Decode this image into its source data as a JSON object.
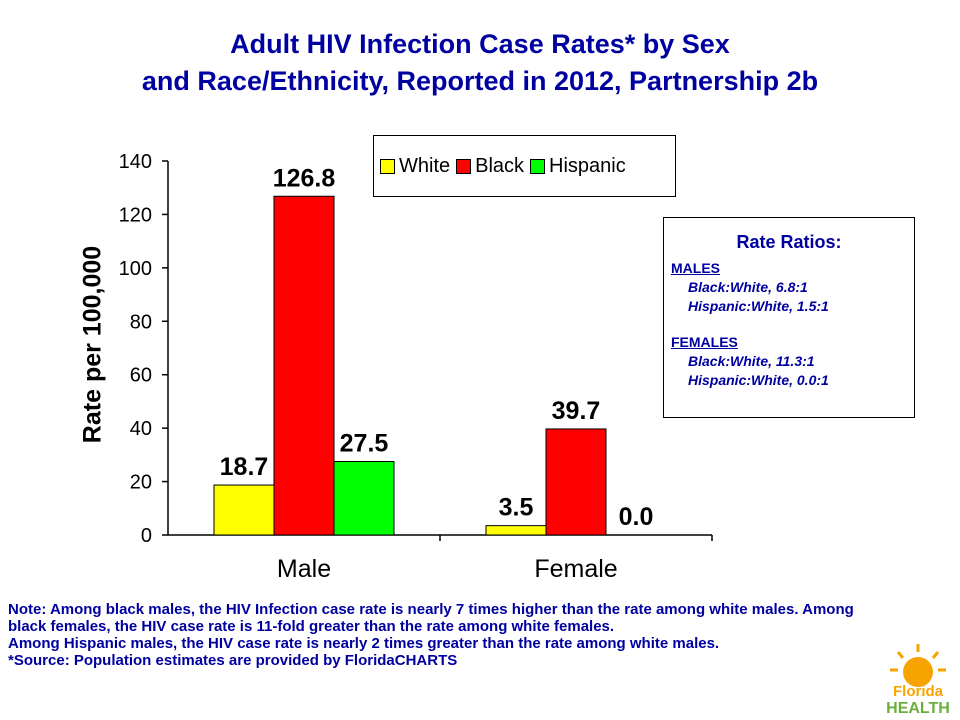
{
  "title_line1": "Adult HIV Infection Case Rates* by Sex",
  "title_line2": "and Race/Ethnicity, Reported in 2012, Partnership 2b",
  "chart_data": {
    "type": "bar",
    "categories": [
      "Male",
      "Female"
    ],
    "series": [
      {
        "name": "White",
        "color": "#ffff00",
        "values": [
          18.7,
          3.5
        ],
        "labels": [
          "18.7",
          "3.5"
        ]
      },
      {
        "name": "Black",
        "color": "#ff0000",
        "values": [
          126.8,
          39.7
        ],
        "labels": [
          "126.8",
          "39.7"
        ]
      },
      {
        "name": "Hispanic",
        "color": "#00ff00",
        "values": [
          27.5,
          0.0
        ],
        "labels": [
          "27.5",
          "0.0"
        ]
      }
    ],
    "ylabel": "Rate per 100,000",
    "ylim": [
      0,
      140
    ],
    "yticks": [
      0,
      20,
      40,
      60,
      80,
      100,
      120,
      140
    ],
    "grid": false,
    "legend_position": "top"
  },
  "ratios": {
    "title": "Rate Ratios:",
    "males_heading": "MALES",
    "males": [
      "Black:White, 6.8:1",
      "Hispanic:White, 1.5:1"
    ],
    "females_heading": "FEMALES",
    "females": [
      "Black:White, 11.3:1",
      "Hispanic:White, 0.0:1"
    ]
  },
  "notes": [
    "Note: Among black males, the HIV Infection case rate is nearly 7 times higher than the rate among white males.  Among black females, the HIV case rate is 11-fold greater than the rate among white females.",
    "Among Hispanic males, the HIV case rate is nearly 2 times greater than the rate among white males.",
    "*Source: Population estimates are provided by FloridaCHARTS"
  ],
  "logo": {
    "line1": "Florida",
    "line2": "HEALTH"
  }
}
